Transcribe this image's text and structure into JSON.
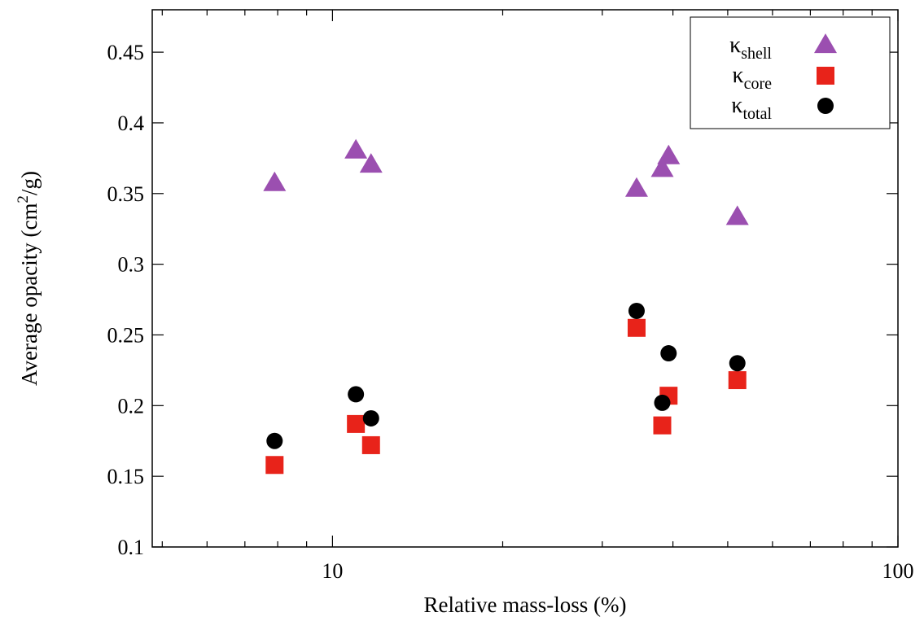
{
  "chart_data": {
    "type": "scatter",
    "title": "",
    "xlabel": "Relative mass-loss (%)",
    "ylabel": {
      "prefix": "Average opacity (cm",
      "sup": "2",
      "suffix": "/g)"
    },
    "xscale": "log",
    "xlim": [
      4.8,
      100
    ],
    "ylim": [
      0.1,
      0.48
    ],
    "xticks": [
      {
        "value": 10,
        "label": "10"
      },
      {
        "value": 100,
        "label": "100"
      }
    ],
    "yticks": [
      {
        "value": 0.1,
        "label": "0.1"
      },
      {
        "value": 0.15,
        "label": "0.15"
      },
      {
        "value": 0.2,
        "label": "0.2"
      },
      {
        "value": 0.25,
        "label": "0.25"
      },
      {
        "value": 0.3,
        "label": "0.3"
      },
      {
        "value": 0.35,
        "label": "0.35"
      },
      {
        "value": 0.4,
        "label": "0.4"
      },
      {
        "value": 0.45,
        "label": "0.45"
      }
    ],
    "grid": false,
    "legend_position": "top-right",
    "series": [
      {
        "name": "κshell",
        "symbol": "κ",
        "subscript": "shell",
        "marker": "triangle",
        "color": "#9b4fb0",
        "x": [
          7.9,
          11.0,
          11.7,
          34.5,
          38.3,
          39.3,
          52.0
        ],
        "y": [
          0.357,
          0.38,
          0.37,
          0.353,
          0.367,
          0.376,
          0.333
        ]
      },
      {
        "name": "κcore",
        "symbol": "κ",
        "subscript": "core",
        "marker": "square",
        "color": "#e8231a",
        "x": [
          7.9,
          11.0,
          11.7,
          34.5,
          38.3,
          39.3,
          52.0
        ],
        "y": [
          0.158,
          0.187,
          0.172,
          0.255,
          0.186,
          0.207,
          0.218
        ]
      },
      {
        "name": "κtotal",
        "symbol": "κ",
        "subscript": "total",
        "marker": "circle",
        "color": "#000000",
        "x": [
          7.9,
          11.0,
          11.7,
          34.5,
          38.3,
          39.3,
          52.0
        ],
        "y": [
          0.175,
          0.208,
          0.191,
          0.267,
          0.202,
          0.237,
          0.23
        ]
      }
    ]
  }
}
